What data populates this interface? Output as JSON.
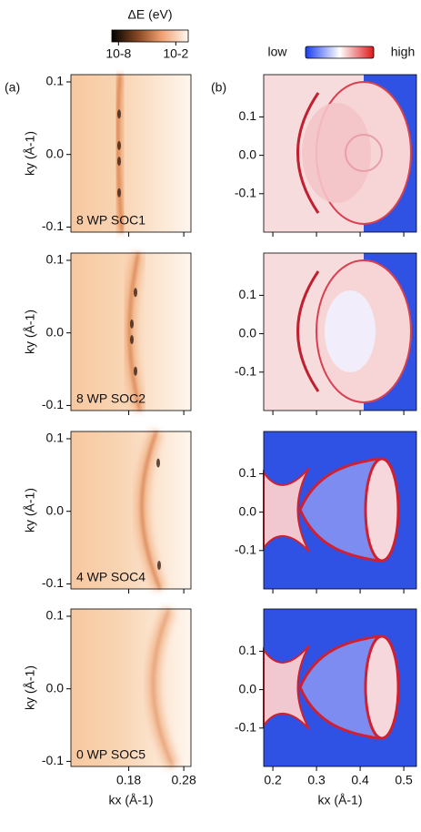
{
  "chart_data": {
    "type": "heatmap",
    "colorbar": {
      "title": "ΔE (eV)",
      "log": true,
      "clim": [
        2e-09,
        0.2
      ],
      "ticks": [
        {
          "value": 1e-08,
          "label": "10-8"
        },
        {
          "value": 0.01,
          "label": "10-2"
        }
      ]
    },
    "colorbar2": {
      "low": "low",
      "high": "high"
    },
    "panel_labels": [
      "(a)",
      "(b)"
    ],
    "left": {
      "xlabel": "kx (Å-1)",
      "ylabel": "ky (Å-1)",
      "xlim": [
        0.075,
        0.293
      ],
      "ylim": [
        -0.107,
        0.11
      ],
      "xticks": [
        0.18,
        0.28
      ],
      "yticks": [
        0.1,
        {
          "value": 0,
          "label": "0.0"
        },
        -0.1
      ]
    },
    "right": {
      "xlabel": "kx (Å-1)",
      "xlim": [
        0.179,
        0.529
      ],
      "ylim": [
        -0.2,
        0.21
      ],
      "xticks": [
        0.2,
        0.3,
        0.4,
        0.5
      ],
      "yticks": [
        0.1,
        {
          "value": 0,
          "label": "0.0"
        },
        -0.1
      ]
    },
    "annotations": [
      "8 WP SOC1",
      "8 WP SOC2",
      "4 WP SOC4",
      "0 WP SOC5"
    ]
  }
}
